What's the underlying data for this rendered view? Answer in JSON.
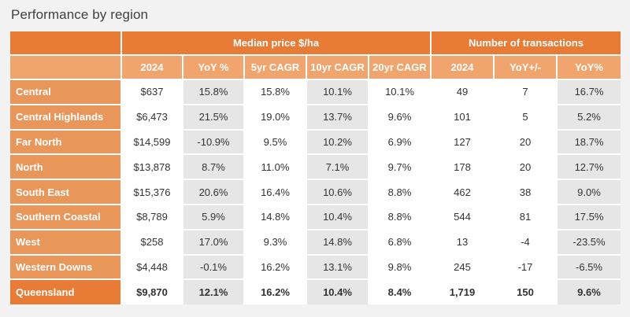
{
  "title": "Performance by region",
  "groups": {
    "price": "Median price $/ha",
    "transactions": "Number of transactions"
  },
  "columns": [
    "2024",
    "YoY %",
    "5yr CAGR",
    "10yr CAGR",
    "20yr CAGR",
    "2024",
    "YoY+/-",
    "YoY%"
  ],
  "rows": [
    {
      "region": "Central",
      "values": [
        "$637",
        "15.8%",
        "15.8%",
        "10.1%",
        "10.1%",
        "49",
        "7",
        "16.7%"
      ]
    },
    {
      "region": "Central Highlands",
      "values": [
        "$6,473",
        "21.5%",
        "19.0%",
        "13.7%",
        "9.6%",
        "101",
        "5",
        "5.2%"
      ]
    },
    {
      "region": "Far North",
      "values": [
        "$14,599",
        "-10.9%",
        "9.5%",
        "10.2%",
        "6.9%",
        "127",
        "20",
        "18.7%"
      ]
    },
    {
      "region": "North",
      "values": [
        "$13,878",
        "8.7%",
        "11.0%",
        "7.1%",
        "9.7%",
        "178",
        "20",
        "12.7%"
      ]
    },
    {
      "region": "South East",
      "values": [
        "$15,376",
        "20.6%",
        "16.4%",
        "10.6%",
        "8.8%",
        "462",
        "38",
        "9.0%"
      ]
    },
    {
      "region": "Southern Coastal",
      "values": [
        "$8,789",
        "5.9%",
        "14.8%",
        "10.4%",
        "8.8%",
        "544",
        "81",
        "17.5%"
      ]
    },
    {
      "region": "West",
      "values": [
        "$258",
        "17.0%",
        "9.3%",
        "14.8%",
        "6.8%",
        "13",
        "-4",
        "-23.5%"
      ]
    },
    {
      "region": "Western Downs",
      "values": [
        "$4,448",
        "-0.1%",
        "16.2%",
        "13.1%",
        "9.8%",
        "245",
        "-17",
        "-6.5%"
      ]
    }
  ],
  "total": {
    "region": "Queensland",
    "values": [
      "$9,870",
      "12.1%",
      "16.2%",
      "10.4%",
      "8.4%",
      "1,719",
      "150",
      "9.6%"
    ]
  },
  "colors": {
    "header_dark": "#e87b35",
    "header_light": "#f0a46e",
    "region_cell": "#e8965a",
    "shade": "#e6e6e6"
  }
}
